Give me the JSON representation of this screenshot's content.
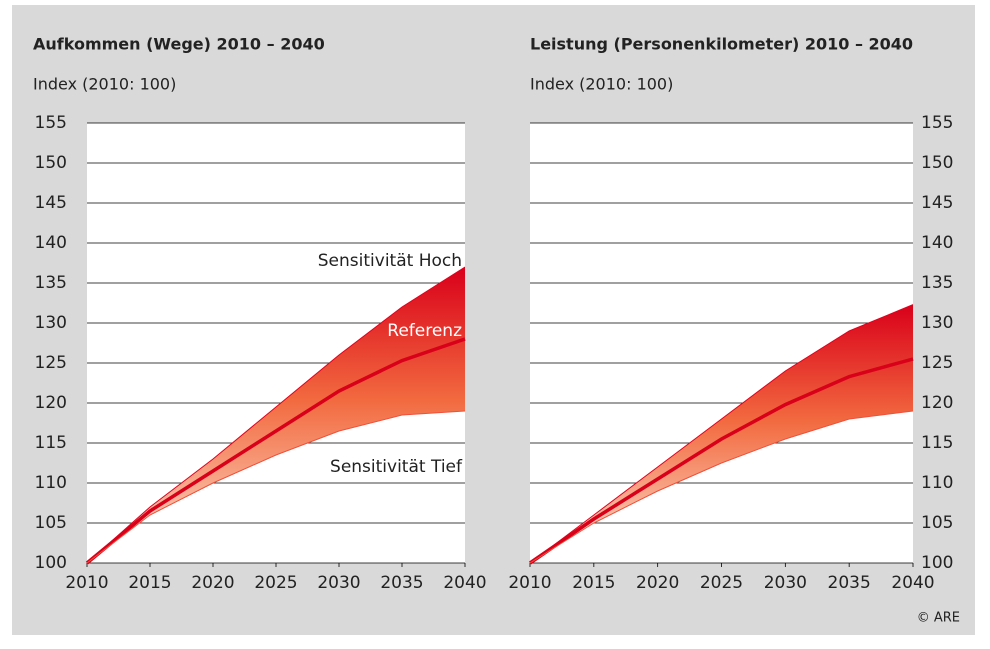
{
  "source": "© ARE",
  "chart_data": [
    {
      "type": "line",
      "title": "Aufkommen (Wege) 2010 – 2040",
      "subtitle": "Index (2010: 100)",
      "x": [
        2010,
        2015,
        2020,
        2025,
        2030,
        2035,
        2040
      ],
      "xlim": [
        2010,
        2040
      ],
      "xticks": [
        2010,
        2015,
        2020,
        2025,
        2030,
        2035,
        2040
      ],
      "ylim": [
        100,
        155
      ],
      "yticks": [
        100,
        105,
        110,
        115,
        120,
        125,
        130,
        135,
        140,
        145,
        150,
        155
      ],
      "y_axis_side": "left",
      "grid": true,
      "series": [
        {
          "name": "Sensitivität Hoch",
          "color": "#e3001b",
          "values": [
            100,
            107,
            113,
            119.5,
            126,
            132,
            137
          ]
        },
        {
          "name": "Referenz",
          "color": "#d9001a",
          "values": [
            100,
            106.5,
            111.5,
            116.5,
            121.5,
            125.3,
            128
          ]
        },
        {
          "name": "Sensitivität Tief",
          "color": "#f0503c",
          "values": [
            100,
            106,
            110,
            113.5,
            116.5,
            118.5,
            119
          ]
        }
      ]
    },
    {
      "type": "line",
      "title": "Leistung (Personenkilometer) 2010 – 2040",
      "subtitle": "Index (2010: 100)",
      "x": [
        2010,
        2015,
        2020,
        2025,
        2030,
        2035,
        2040
      ],
      "xlim": [
        2010,
        2040
      ],
      "xticks": [
        2010,
        2015,
        2020,
        2025,
        2030,
        2035,
        2040
      ],
      "ylim": [
        100,
        155
      ],
      "yticks": [
        100,
        105,
        110,
        115,
        120,
        125,
        130,
        135,
        140,
        145,
        150,
        155
      ],
      "y_axis_side": "right",
      "grid": true,
      "series": [
        {
          "color": "#e3001b",
          "values": [
            100,
            106,
            112,
            118,
            124,
            129,
            132.3
          ]
        },
        {
          "color": "#d9001a",
          "values": [
            100,
            105.5,
            110.5,
            115.5,
            119.8,
            123.3,
            125.5
          ]
        },
        {
          "color": "#f0503c",
          "values": [
            100,
            105,
            109,
            112.5,
            115.5,
            118,
            119
          ]
        }
      ]
    }
  ]
}
